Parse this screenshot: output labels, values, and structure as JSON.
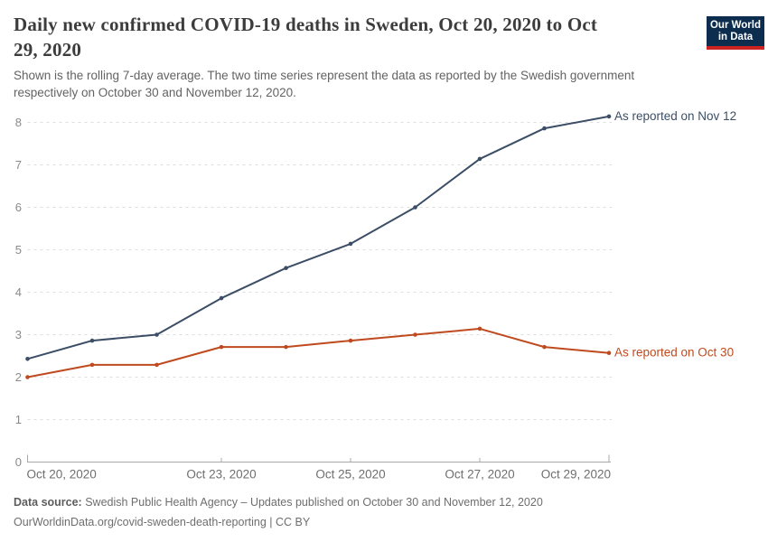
{
  "header": {
    "logo": {
      "line1": "Our World",
      "line2": "in Data",
      "bg_color": "#0d2d4f",
      "stripe_color": "#cb2420"
    }
  },
  "chart_data": {
    "type": "line",
    "title": "Daily new confirmed COVID-19 deaths in Sweden, Oct 20, 2020 to Oct 29, 2020",
    "subtitle": "Shown is the rolling 7-day average. The two time series represent the data as reported by the Swedish government respectively on October 30 and November 12, 2020.",
    "xlabel": "",
    "ylabel": "",
    "x": [
      "Oct 20, 2020",
      "Oct 21, 2020",
      "Oct 22, 2020",
      "Oct 23, 2020",
      "Oct 24, 2020",
      "Oct 25, 2020",
      "Oct 26, 2020",
      "Oct 27, 2020",
      "Oct 28, 2020",
      "Oct 29, 2020"
    ],
    "series": [
      {
        "name": "As reported on Nov 12",
        "color": "#3c4e66",
        "values": [
          2.43,
          2.86,
          3.0,
          3.86,
          4.57,
          5.14,
          6.0,
          7.14,
          7.86,
          8.14
        ]
      },
      {
        "name": "As reported on Oct 30",
        "color": "#bf4a1f",
        "values": [
          2.0,
          2.29,
          2.29,
          2.71,
          2.71,
          2.86,
          3.0,
          3.14,
          2.71,
          2.57
        ]
      }
    ],
    "ylim": [
      0,
      8.6
    ],
    "yticks": [
      0,
      1,
      2,
      3,
      4,
      5,
      6,
      7,
      8
    ],
    "xticks": [
      {
        "i": 0,
        "label": "Oct 20, 2020"
      },
      {
        "i": 3,
        "label": "Oct 23, 2020"
      },
      {
        "i": 5,
        "label": "Oct 25, 2020"
      },
      {
        "i": 7,
        "label": "Oct 27, 2020"
      },
      {
        "i": 9,
        "label": "Oct 29, 2020"
      }
    ],
    "grid": "horizontal-dashed",
    "legend_position": "labels-at-line-ends"
  },
  "footer": {
    "source_label": "Data source:",
    "source_text": " Swedish Public Health Agency – Updates published on October 30 and November 12, 2020",
    "license_line": "OurWorldinData.org/covid-sweden-death-reporting | CC BY"
  }
}
